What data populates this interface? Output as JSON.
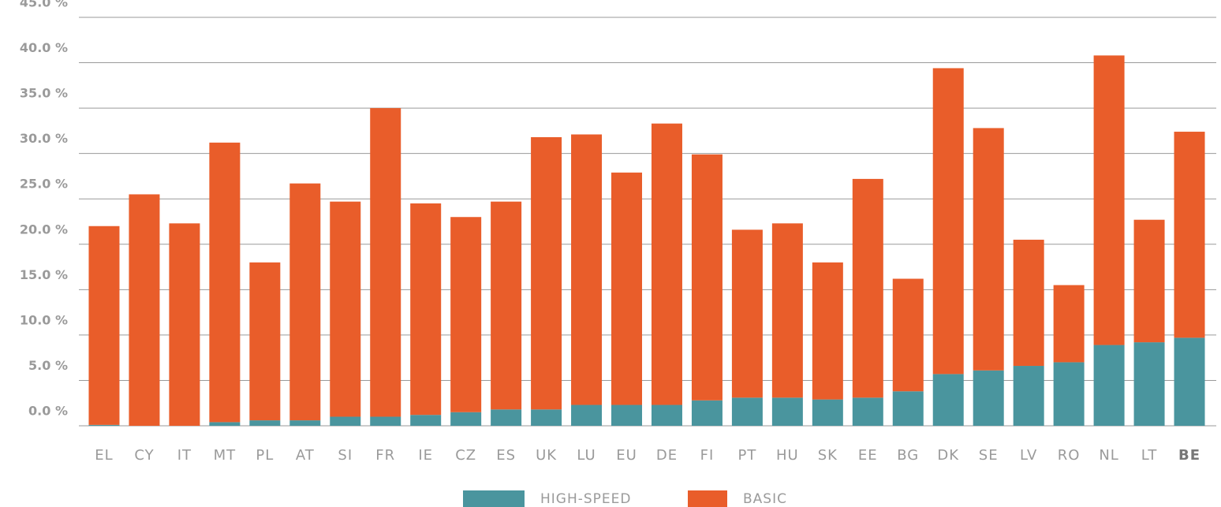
{
  "chart_data": {
    "type": "stacked_bar",
    "categories": [
      "EL",
      "CY",
      "IT",
      "MT",
      "PL",
      "AT",
      "SI",
      "FR",
      "IE",
      "CZ",
      "ES",
      "UK",
      "LU",
      "EU",
      "DE",
      "FI",
      "PT",
      "HU",
      "SK",
      "EE",
      "BG",
      "DK",
      "SE",
      "LV",
      "RO",
      "NL",
      "LT",
      "BE"
    ],
    "series": [
      {
        "name": "HIGH-SPEED",
        "color": "#4a959e",
        "values": [
          0.1,
          0,
          0,
          0.4,
          0.6,
          0.6,
          1.0,
          1.0,
          1.2,
          1.5,
          1.8,
          1.8,
          2.3,
          2.3,
          2.3,
          2.8,
          3.1,
          3.1,
          2.9,
          3.1,
          3.8,
          5.7,
          6.1,
          6.6,
          7.0,
          8.9,
          9.2,
          9.7
        ]
      },
      {
        "name": "BASIC",
        "color": "#e95d2a",
        "values": [
          21.9,
          25.5,
          22.3,
          30.8,
          17.4,
          26.1,
          23.7,
          34.0,
          23.3,
          21.5,
          22.9,
          30.0,
          29.8,
          25.6,
          31.0,
          27.1,
          18.5,
          19.2,
          15.1,
          24.1,
          12.4,
          33.7,
          26.7,
          13.9,
          8.5,
          31.9,
          13.5,
          22.7
        ]
      }
    ],
    "ylim": [
      0,
      45
    ],
    "yticks": [
      {
        "value": 0,
        "label": "0.0 %"
      },
      {
        "value": 5,
        "label": "5.0 %"
      },
      {
        "value": 10,
        "label": "10.0 %"
      },
      {
        "value": 15,
        "label": "15.0 %"
      },
      {
        "value": 20,
        "label": "20.0 %"
      },
      {
        "value": 25,
        "label": "25.0 %"
      },
      {
        "value": 30,
        "label": "30.0 %"
      },
      {
        "value": 35,
        "label": "35.0 %"
      },
      {
        "value": 40,
        "label": "40.0 %"
      },
      {
        "value": 45,
        "label": "45.0 %"
      }
    ],
    "grid": true,
    "legend": "bottom"
  }
}
